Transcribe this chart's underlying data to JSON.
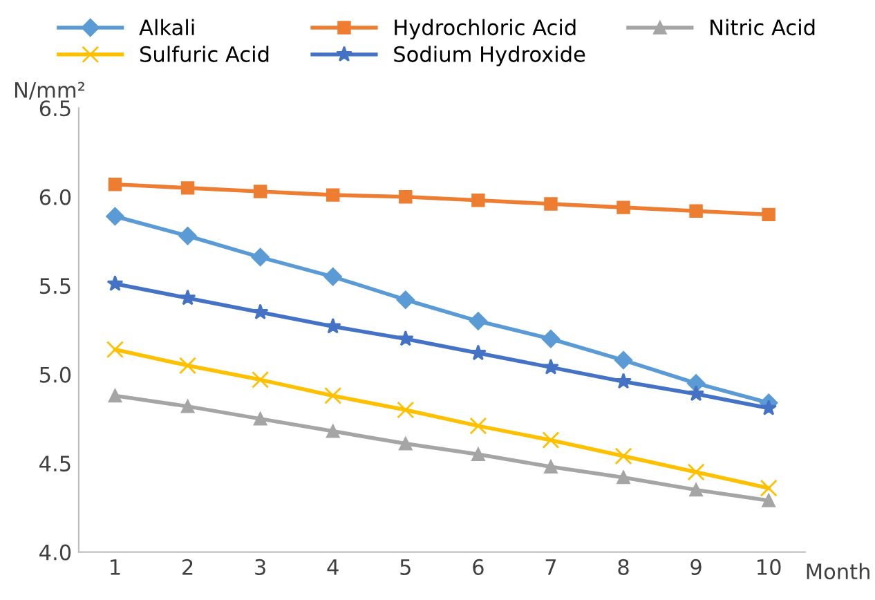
{
  "chart_data": {
    "type": "line",
    "ylabel": "N/mm²",
    "xlabel": "Month",
    "categories": [
      "1",
      "2",
      "3",
      "4",
      "5",
      "6",
      "7",
      "8",
      "9",
      "10"
    ],
    "series": [
      {
        "name": "Alkali",
        "color": "#5b9bd5",
        "marker": "diamond",
        "values": [
          5.89,
          5.78,
          5.66,
          5.55,
          5.42,
          5.3,
          5.2,
          5.08,
          4.95,
          4.84
        ]
      },
      {
        "name": "Hydrochloric Acid",
        "color": "#ed7d31",
        "marker": "square",
        "values": [
          6.07,
          6.05,
          6.03,
          6.01,
          6.0,
          5.98,
          5.96,
          5.94,
          5.92,
          5.9
        ]
      },
      {
        "name": "Nitric Acid",
        "color": "#a5a5a5",
        "marker": "triangle",
        "values": [
          4.88,
          4.82,
          4.75,
          4.68,
          4.61,
          4.55,
          4.48,
          4.42,
          4.35,
          4.29
        ]
      },
      {
        "name": "Sulfuric Acid",
        "color": "#ffc000",
        "marker": "cross",
        "values": [
          5.14,
          5.05,
          4.97,
          4.88,
          4.8,
          4.71,
          4.63,
          4.54,
          4.45,
          4.36
        ]
      },
      {
        "name": "Sodium Hydroxide",
        "color": "#4472c4",
        "marker": "star",
        "values": [
          5.51,
          5.43,
          5.35,
          5.27,
          5.2,
          5.12,
          5.04,
          4.96,
          4.89,
          4.81
        ]
      }
    ],
    "ylim": [
      4.0,
      6.5
    ],
    "yticks": [
      {
        "value": 4.0,
        "label": "4.0"
      },
      {
        "value": 4.5,
        "label": "4.5"
      },
      {
        "value": 5.0,
        "label": "5.0"
      },
      {
        "value": 5.5,
        "label": "5.5"
      },
      {
        "value": 6.0,
        "label": "6.0"
      },
      {
        "value": 6.5,
        "label": "6.5"
      }
    ],
    "grid": false,
    "legend": "top",
    "line_style": "solid"
  }
}
